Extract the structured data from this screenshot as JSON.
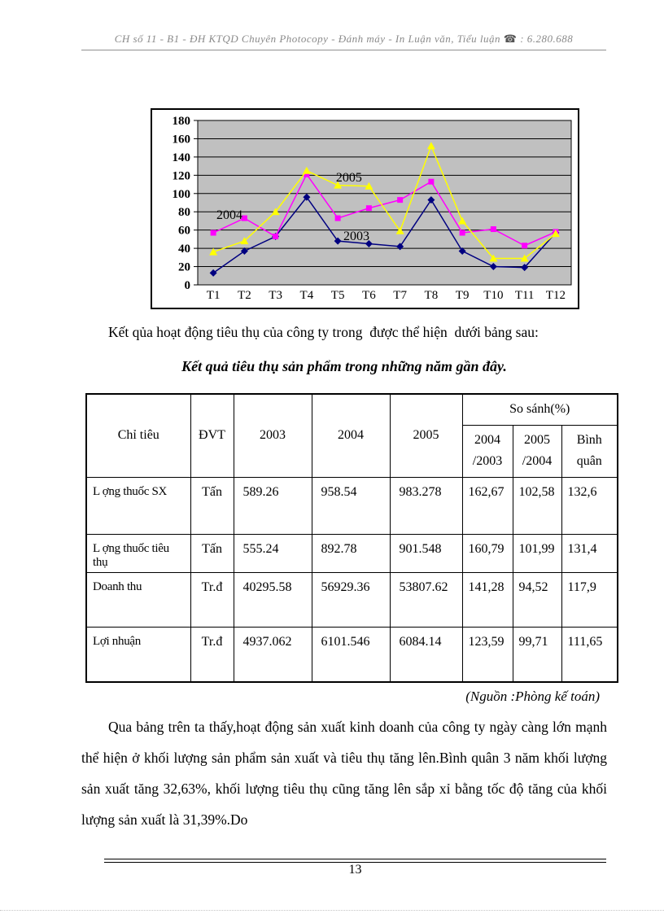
{
  "header": {
    "text": "CH số 11 - B1 - ĐH KTQD Chuyên Photocopy - Đánh máy - In Luận văn, Tiểu luận",
    "phone_icon": "☎",
    "phone_number": ": 6.280.688"
  },
  "intro_text": "Kết qủa hoạt động tiêu thụ của công ty trong  được thể hiện  dưới bảng sau:",
  "table_title": "Kết quả tiêu thụ sản phẩm trong những năm gần đây.",
  "chart_data": {
    "type": "line",
    "title": "",
    "xlabel": "",
    "ylabel": "",
    "categories": [
      "T1",
      "T2",
      "T3",
      "T4",
      "T5",
      "T6",
      "T7",
      "T8",
      "T9",
      "T10",
      "T11",
      "T12"
    ],
    "ylim": [
      0,
      180
    ],
    "ytick_step": 20,
    "grid": "horizontal",
    "legend_position": "none",
    "plot_bg": "#c0c0c0",
    "series": [
      {
        "name": "2003",
        "color": "#000080",
        "marker": "diamond",
        "values": [
          13,
          37,
          53,
          96,
          48,
          45,
          42,
          93,
          37,
          20,
          19,
          57
        ]
      },
      {
        "name": "2004",
        "color": "#ff00ff",
        "marker": "square",
        "values": [
          57,
          73,
          53,
          121,
          73,
          84,
          93,
          113,
          57,
          61,
          43,
          58
        ]
      },
      {
        "name": "2005",
        "color": "#ffff00",
        "marker": "triangle",
        "values": [
          36,
          48,
          80,
          125,
          109,
          108,
          59,
          152,
          70,
          29,
          29,
          56
        ]
      }
    ],
    "annotations": [
      {
        "text": "2004",
        "fx": 0.05,
        "v": 72
      },
      {
        "text": "2005",
        "fx": 0.37,
        "v": 113
      },
      {
        "text": "2003",
        "fx": 0.39,
        "v": 49
      }
    ]
  },
  "table": {
    "header": {
      "criteria": "Chỉ tiêu",
      "unit": "ĐVT",
      "year_2003": "2003",
      "year_2004": "2004",
      "year_2005": "2005",
      "compare_label": "So sánh(%)",
      "compare_cols": [
        "2004 /2003",
        "2005 /2004",
        "Bình quân"
      ]
    },
    "rows": [
      {
        "cells": [
          "L ợng thuốc SX",
          "Tấn",
          "589.26",
          "958.54",
          "983.278",
          "162,67",
          "102,58",
          "132,6"
        ]
      },
      {
        "cells": [
          "L ợng thuốc tiêu thụ",
          "Tấn",
          "555.24",
          "892.78",
          "901.548",
          "160,79",
          "101,99",
          "131,4"
        ]
      },
      {
        "cells": [
          "Doanh thu",
          "Tr.đ",
          "40295.58",
          "56929.36",
          "53807.62",
          "141,28",
          "94,52",
          "117,9"
        ]
      },
      {
        "cells": [
          "Lợi nhuận",
          "Tr.đ",
          "4937.062",
          "6101.546",
          "6084.14",
          "123,59",
          "99,71",
          "111,65"
        ]
      }
    ]
  },
  "source_note": "(Nguồn :Phòng kế toán)",
  "body_paragraph": "Qua bảng trên ta thấy,hoạt động sản xuất kinh doanh của công ty ngày càng lớn mạnh thể hiện ở khối lượng sản phẩm sản xuất và tiêu thụ tăng lên.Bình quân 3 năm khối lượng sản xuất tăng 32,63%, khối lượng tiêu thụ cũng tăng lên sắp xỉ bằng tốc độ tăng của khối lượng sản xuất là 31,39%.Do",
  "footer": {
    "page_number": "13"
  }
}
